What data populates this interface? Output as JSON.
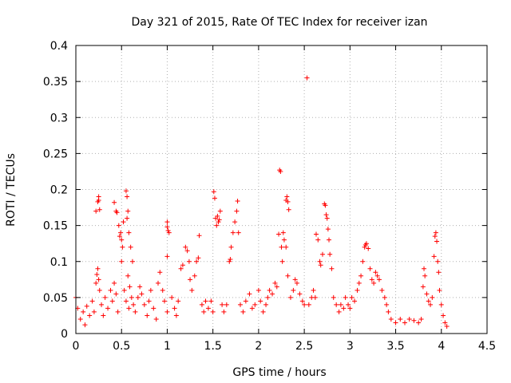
{
  "chart_data": {
    "type": "scatter",
    "title": "Day 321 of 2015, Rate Of TEC Index for receiver izan",
    "xlabel": "GPS time / hours",
    "ylabel": "ROTI / TECUs",
    "xlim": [
      0,
      4.5
    ],
    "ylim": [
      0,
      0.4
    ],
    "x_ticks": [
      0,
      0.5,
      1,
      1.5,
      2,
      2.5,
      3,
      3.5,
      4,
      4.5
    ],
    "x_tick_labels": [
      "0",
      "0.5",
      "1",
      "1.5",
      "2",
      "2.5",
      "3",
      "3.5",
      "4",
      "4.5"
    ],
    "y_ticks": [
      0,
      0.05,
      0.1,
      0.15,
      0.2,
      0.25,
      0.3,
      0.35,
      0.4
    ],
    "y_tick_labels": [
      "0",
      "0.05",
      "0.1",
      "0.15",
      "0.2",
      "0.25",
      "0.3",
      "0.35",
      "0.4"
    ],
    "grid": true,
    "marker": "+",
    "color": "#ff0000",
    "series": [
      {
        "name": "ROTI",
        "points": [
          [
            0.0,
            0.05
          ],
          [
            0.02,
            0.035
          ],
          [
            0.05,
            0.02
          ],
          [
            0.08,
            0.03
          ],
          [
            0.1,
            0.012
          ],
          [
            0.12,
            0.038
          ],
          [
            0.15,
            0.025
          ],
          [
            0.18,
            0.045
          ],
          [
            0.2,
            0.03
          ],
          [
            0.22,
            0.07
          ],
          [
            0.23,
            0.082
          ],
          [
            0.24,
            0.09
          ],
          [
            0.25,
            0.075
          ],
          [
            0.26,
            0.06
          ],
          [
            0.22,
            0.17
          ],
          [
            0.24,
            0.183
          ],
          [
            0.25,
            0.19
          ],
          [
            0.26,
            0.172
          ],
          [
            0.25,
            0.185
          ],
          [
            0.28,
            0.04
          ],
          [
            0.3,
            0.025
          ],
          [
            0.32,
            0.05
          ],
          [
            0.35,
            0.035
          ],
          [
            0.38,
            0.06
          ],
          [
            0.4,
            0.045
          ],
          [
            0.42,
            0.07
          ],
          [
            0.44,
            0.055
          ],
          [
            0.46,
            0.03
          ],
          [
            0.42,
            0.182
          ],
          [
            0.44,
            0.17
          ],
          [
            0.45,
            0.168
          ],
          [
            0.47,
            0.15
          ],
          [
            0.48,
            0.135
          ],
          [
            0.5,
            0.13
          ],
          [
            0.49,
            0.14
          ],
          [
            0.51,
            0.12
          ],
          [
            0.5,
            0.1
          ],
          [
            0.52,
            0.155
          ],
          [
            0.55,
            0.198
          ],
          [
            0.56,
            0.19
          ],
          [
            0.57,
            0.17
          ],
          [
            0.56,
            0.16
          ],
          [
            0.58,
            0.14
          ],
          [
            0.6,
            0.12
          ],
          [
            0.62,
            0.1
          ],
          [
            0.57,
            0.08
          ],
          [
            0.59,
            0.065
          ],
          [
            0.61,
            0.05
          ],
          [
            0.53,
            0.06
          ],
          [
            0.55,
            0.045
          ],
          [
            0.58,
            0.035
          ],
          [
            0.63,
            0.04
          ],
          [
            0.65,
            0.03
          ],
          [
            0.68,
            0.05
          ],
          [
            0.7,
            0.065
          ],
          [
            0.72,
            0.055
          ],
          [
            0.75,
            0.04
          ],
          [
            0.78,
            0.025
          ],
          [
            0.8,
            0.045
          ],
          [
            0.82,
            0.06
          ],
          [
            0.85,
            0.035
          ],
          [
            0.88,
            0.02
          ],
          [
            0.9,
            0.07
          ],
          [
            0.92,
            0.085
          ],
          [
            0.95,
            0.06
          ],
          [
            0.97,
            0.045
          ],
          [
            1.0,
            0.03
          ],
          [
            1.0,
            0.107
          ],
          [
            1.0,
            0.155
          ],
          [
            1.01,
            0.143
          ],
          [
            1.02,
            0.14
          ],
          [
            1.0,
            0.148
          ],
          [
            1.05,
            0.05
          ],
          [
            1.08,
            0.035
          ],
          [
            1.1,
            0.025
          ],
          [
            1.12,
            0.045
          ],
          [
            1.15,
            0.09
          ],
          [
            1.17,
            0.095
          ],
          [
            1.2,
            0.12
          ],
          [
            1.22,
            0.115
          ],
          [
            1.24,
            0.1
          ],
          [
            1.25,
            0.075
          ],
          [
            1.27,
            0.06
          ],
          [
            1.3,
            0.08
          ],
          [
            1.32,
            0.1
          ],
          [
            1.34,
            0.105
          ],
          [
            1.35,
            0.136
          ],
          [
            1.38,
            0.04
          ],
          [
            1.4,
            0.03
          ],
          [
            1.42,
            0.045
          ],
          [
            1.45,
            0.035
          ],
          [
            1.48,
            0.045
          ],
          [
            1.5,
            0.03
          ],
          [
            1.51,
            0.197
          ],
          [
            1.52,
            0.188
          ],
          [
            1.53,
            0.16
          ],
          [
            1.55,
            0.163
          ],
          [
            1.56,
            0.155
          ],
          [
            1.58,
            0.17
          ],
          [
            1.57,
            0.158
          ],
          [
            1.54,
            0.15
          ],
          [
            1.6,
            0.04
          ],
          [
            1.62,
            0.03
          ],
          [
            1.65,
            0.04
          ],
          [
            1.68,
            0.1
          ],
          [
            1.69,
            0.103
          ],
          [
            1.7,
            0.12
          ],
          [
            1.72,
            0.14
          ],
          [
            1.74,
            0.155
          ],
          [
            1.76,
            0.17
          ],
          [
            1.77,
            0.184
          ],
          [
            1.78,
            0.14
          ],
          [
            1.8,
            0.04
          ],
          [
            1.83,
            0.03
          ],
          [
            1.86,
            0.045
          ],
          [
            1.9,
            0.055
          ],
          [
            1.93,
            0.035
          ],
          [
            1.96,
            0.04
          ],
          [
            2.0,
            0.06
          ],
          [
            2.02,
            0.045
          ],
          [
            2.05,
            0.03
          ],
          [
            2.08,
            0.04
          ],
          [
            2.1,
            0.05
          ],
          [
            2.12,
            0.06
          ],
          [
            2.15,
            0.055
          ],
          [
            2.18,
            0.07
          ],
          [
            2.2,
            0.065
          ],
          [
            2.22,
            0.138
          ],
          [
            2.23,
            0.227
          ],
          [
            2.24,
            0.225
          ],
          [
            2.25,
            0.12
          ],
          [
            2.26,
            0.1
          ],
          [
            2.27,
            0.14
          ],
          [
            2.28,
            0.13
          ],
          [
            2.3,
            0.185
          ],
          [
            2.31,
            0.19
          ],
          [
            2.32,
            0.183
          ],
          [
            2.33,
            0.172
          ],
          [
            2.3,
            0.12
          ],
          [
            2.32,
            0.08
          ],
          [
            2.35,
            0.05
          ],
          [
            2.38,
            0.06
          ],
          [
            2.4,
            0.075
          ],
          [
            2.42,
            0.07
          ],
          [
            2.45,
            0.055
          ],
          [
            2.48,
            0.045
          ],
          [
            2.5,
            0.04
          ],
          [
            2.53,
            0.355
          ],
          [
            2.55,
            0.04
          ],
          [
            2.58,
            0.05
          ],
          [
            2.6,
            0.06
          ],
          [
            2.62,
            0.05
          ],
          [
            2.63,
            0.138
          ],
          [
            2.65,
            0.13
          ],
          [
            2.67,
            0.1
          ],
          [
            2.68,
            0.095
          ],
          [
            2.7,
            0.11
          ],
          [
            2.72,
            0.18
          ],
          [
            2.73,
            0.178
          ],
          [
            2.74,
            0.165
          ],
          [
            2.75,
            0.16
          ],
          [
            2.76,
            0.145
          ],
          [
            2.77,
            0.13
          ],
          [
            2.78,
            0.11
          ],
          [
            2.8,
            0.09
          ],
          [
            2.82,
            0.05
          ],
          [
            2.85,
            0.04
          ],
          [
            2.88,
            0.03
          ],
          [
            2.9,
            0.04
          ],
          [
            2.93,
            0.035
          ],
          [
            2.95,
            0.05
          ],
          [
            2.98,
            0.04
          ],
          [
            3.0,
            0.035
          ],
          [
            3.02,
            0.05
          ],
          [
            3.05,
            0.045
          ],
          [
            3.08,
            0.06
          ],
          [
            3.1,
            0.07
          ],
          [
            3.12,
            0.08
          ],
          [
            3.14,
            0.1
          ],
          [
            3.16,
            0.12
          ],
          [
            3.17,
            0.123
          ],
          [
            3.18,
            0.125
          ],
          [
            3.2,
            0.118
          ],
          [
            3.22,
            0.09
          ],
          [
            3.24,
            0.075
          ],
          [
            3.26,
            0.07
          ],
          [
            3.28,
            0.085
          ],
          [
            3.3,
            0.08
          ],
          [
            3.32,
            0.075
          ],
          [
            3.35,
            0.06
          ],
          [
            3.38,
            0.05
          ],
          [
            3.4,
            0.04
          ],
          [
            3.42,
            0.03
          ],
          [
            3.45,
            0.02
          ],
          [
            3.5,
            0.015
          ],
          [
            3.55,
            0.02
          ],
          [
            3.6,
            0.015
          ],
          [
            3.65,
            0.02
          ],
          [
            3.7,
            0.018
          ],
          [
            3.75,
            0.015
          ],
          [
            3.78,
            0.02
          ],
          [
            3.8,
            0.065
          ],
          [
            3.81,
            0.09
          ],
          [
            3.82,
            0.08
          ],
          [
            3.84,
            0.055
          ],
          [
            3.86,
            0.045
          ],
          [
            3.88,
            0.04
          ],
          [
            3.9,
            0.05
          ],
          [
            3.92,
            0.107
          ],
          [
            3.93,
            0.135
          ],
          [
            3.94,
            0.14
          ],
          [
            3.95,
            0.128
          ],
          [
            3.96,
            0.1
          ],
          [
            3.97,
            0.085
          ],
          [
            3.98,
            0.06
          ],
          [
            4.0,
            0.04
          ],
          [
            4.02,
            0.025
          ],
          [
            4.04,
            0.015
          ],
          [
            4.06,
            0.01
          ]
        ]
      }
    ]
  }
}
